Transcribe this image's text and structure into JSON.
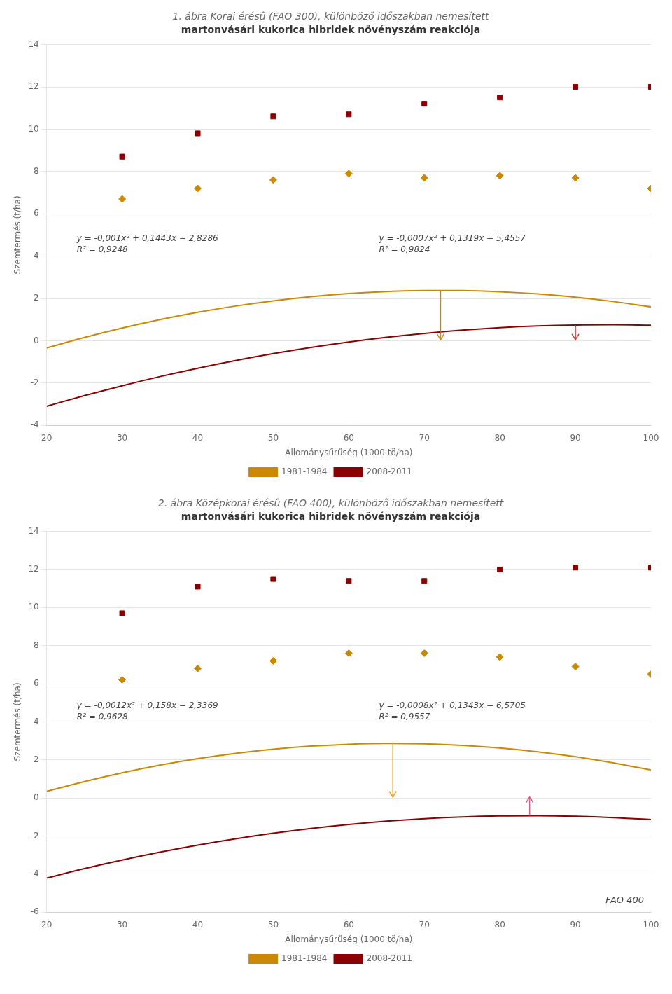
{
  "chart_data": [
    {
      "type": "scatter",
      "title": "1. ábra Korai érésû (FAO 300), különböző időszakban nemesített",
      "subtitle": "martonvásári kukorica hibridek növényszám reakciója",
      "xlabel": "Állománysűrűség (1000 tö/ha)",
      "ylabel": "Szemtermés (t/ha)",
      "xlim": [
        20,
        100
      ],
      "ylim": [
        -4,
        14
      ],
      "xticks": [
        20,
        30,
        40,
        50,
        60,
        70,
        80,
        90,
        100
      ],
      "yticks": [
        -4,
        -2,
        0,
        2,
        4,
        6,
        8,
        10,
        12,
        14
      ],
      "grid": true,
      "legend": "bottom",
      "series": [
        {
          "name": "1981-1984",
          "color": "#cc8800",
          "marker": "diamond",
          "x": [
            30,
            40,
            50,
            60,
            70,
            80,
            90,
            100
          ],
          "values": [
            6.7,
            7.2,
            7.6,
            7.9,
            7.7,
            7.8,
            7.7,
            7.2
          ],
          "trend": {
            "x": [
              20,
              25,
              30,
              35,
              40,
              45,
              50,
              55,
              60,
              65,
              70,
              75,
              80,
              85,
              90,
              95,
              100
            ],
            "values": [
              -0.3426,
              0.1539,
              0.6004,
              0.9969,
              1.3434,
              1.6399,
              1.8864,
              2.0829,
              2.2294,
              2.3259,
              2.3724,
              2.3689,
              2.3154,
              2.2119,
              2.0584,
              1.8549,
              1.6014
            ]
          },
          "equation": "y = -0,001x² + 0,1443x − 2,8286",
          "r2": "R² = 0,9248"
        },
        {
          "name": "2008-2011",
          "color": "#8b0000",
          "marker": "square",
          "x": [
            30,
            40,
            50,
            60,
            70,
            80,
            90,
            100
          ],
          "values": [
            8.7,
            9.8,
            10.6,
            10.7,
            11.2,
            11.5,
            12.0,
            12.0
          ],
          "trend": {
            "x": [
              20,
              25,
              30,
              35,
              40,
              45,
              50,
              55,
              60,
              65,
              70,
              75,
              80,
              85,
              90,
              95,
              100
            ],
            "values": [
              -3.0977,
              -2.5957,
              -2.1287,
              -1.6967,
              -1.2997,
              -0.9377,
              -0.6107,
              -0.3187,
              -0.0617,
              0.1603,
              0.3473,
              0.4993,
              0.6163,
              0.6983,
              0.7453,
              0.7573,
              0.7343
            ]
          },
          "equation": "y = -0,0007x² + 0,1319x − 5,4557",
          "r2": "R² = 0,9824"
        }
      ],
      "arrows": [
        {
          "x": 72.15,
          "from": 2.3770225,
          "to": 0.05,
          "color": "#cc8800"
        },
        {
          "x": 90,
          "from": 0.7453,
          "to": 0.05,
          "color": "#cc3333"
        }
      ]
    },
    {
      "type": "scatter",
      "title": "2. ábra Középkorai érésû (FAO 400), különböző időszakban nemesített",
      "subtitle": "martonvásári kukorica hibridek növényszám reakciója",
      "xlabel": "Állománysűrűség (1000 tö/ha)",
      "ylabel": "Szemtermés (t/ha)",
      "xlim": [
        20,
        100
      ],
      "ylim": [
        -6,
        14
      ],
      "xticks": [
        20,
        30,
        40,
        50,
        60,
        70,
        80,
        90,
        100
      ],
      "yticks": [
        -6,
        -4,
        -2,
        0,
        2,
        4,
        6,
        8,
        10,
        12,
        14
      ],
      "grid": true,
      "legend": "bottom",
      "series": [
        {
          "name": "1981-1984",
          "color": "#cc8800",
          "marker": "diamond",
          "x": [
            30,
            40,
            50,
            60,
            70,
            80,
            90,
            100
          ],
          "values": [
            6.2,
            6.8,
            7.2,
            7.6,
            7.6,
            7.4,
            6.9,
            6.5
          ],
          "trend": {
            "x": [
              20,
              25,
              30,
              35,
              40,
              45,
              50,
              55,
              60,
              65,
              70,
              75,
              80,
              85,
              90,
              95,
              100
            ],
            "values": [
              0.3431,
              0.8631,
              1.3231,
              1.7231,
              2.0631,
              2.3431,
              2.5631,
              2.7231,
              2.8231,
              2.8631,
              2.8431,
              2.7631,
              2.6231,
              2.4231,
              2.1631,
              1.8431,
              1.4631
            ]
          },
          "equation": "y = -0,0012x² + 0,158x − 2,3369",
          "r2": "R² = 0,9628"
        },
        {
          "name": "2008-2011",
          "color": "#8b0000",
          "marker": "square",
          "x": [
            30,
            40,
            50,
            60,
            70,
            80,
            90,
            100
          ],
          "values": [
            9.7,
            11.1,
            11.5,
            11.4,
            11.4,
            12.0,
            12.1,
            12.1
          ],
          "trend": {
            "x": [
              20,
              25,
              30,
              35,
              40,
              45,
              50,
              55,
              60,
              65,
              70,
              75,
              80,
              85,
              90,
              95,
              100
            ],
            "values": [
              -4.2045,
              -3.713,
              -3.2615,
              -2.85,
              -2.4785,
              -2.147,
              -1.8555,
              -1.604,
              -1.3925,
              -1.221,
              -1.0895,
              -0.998,
              -0.9465,
              -0.935,
              -0.9635,
              -1.032,
              -1.1405
            ]
          },
          "equation": "y = -0,0008x² + 0,1343x − 6,5705",
          "r2": "R² = 0,9557"
        }
      ],
      "arrows": [
        {
          "x": 65.83,
          "from": 2.86393332,
          "to": 0.05,
          "color": "#e8a020"
        },
        {
          "x": 83.94,
          "from": -0.93409688,
          "to": 0.05,
          "color": "#cc6688"
        }
      ],
      "annotations": [
        "FAO 400"
      ]
    }
  ]
}
